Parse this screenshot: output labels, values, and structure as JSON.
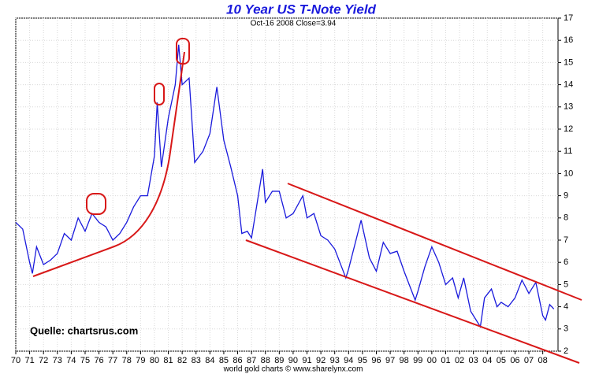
{
  "chart_data": {
    "type": "line",
    "title": "10 Year US T-Note Yield",
    "subtitle": "Oct-16 2008  Close=3.94",
    "annotation": "Quelle: chartsrus.com",
    "footer": "world gold charts © www.sharelynx.com",
    "x": [
      1970.0,
      1970.5,
      1971.0,
      1971.2,
      1971.5,
      1972.0,
      1972.5,
      1973.0,
      1973.5,
      1974.0,
      1974.5,
      1975.0,
      1975.5,
      1976.0,
      1976.5,
      1977.0,
      1977.5,
      1978.0,
      1978.5,
      1979.0,
      1979.5,
      1980.0,
      1980.2,
      1980.5,
      1981.0,
      1981.5,
      1981.75,
      1982.0,
      1982.5,
      1982.9,
      1983.5,
      1984.0,
      1984.5,
      1985.0,
      1985.5,
      1986.0,
      1986.3,
      1986.7,
      1987.0,
      1987.8,
      1988.0,
      1988.5,
      1989.0,
      1989.5,
      1990.0,
      1990.7,
      1991.0,
      1991.5,
      1992.0,
      1992.5,
      1993.0,
      1993.8,
      1994.0,
      1994.9,
      1995.5,
      1996.0,
      1996.5,
      1997.0,
      1997.5,
      1998.0,
      1998.8,
      1999.0,
      1999.5,
      2000.0,
      2000.5,
      2001.0,
      2001.5,
      2001.9,
      2002.3,
      2002.8,
      2003.5,
      2003.8,
      2004.3,
      2004.7,
      2005.0,
      2005.5,
      2006.0,
      2006.5,
      2007.0,
      2007.5,
      2008.0,
      2008.2,
      2008.5,
      2008.8
    ],
    "series": [
      {
        "name": "10 Year US T-Note Yield",
        "color": "#1a1adc",
        "values": [
          7.8,
          7.5,
          6.0,
          5.5,
          6.7,
          5.9,
          6.1,
          6.4,
          7.3,
          7.0,
          8.0,
          7.4,
          8.2,
          7.8,
          7.6,
          7.0,
          7.3,
          7.8,
          8.5,
          9.0,
          9.0,
          10.8,
          13.2,
          10.3,
          12.5,
          14.0,
          15.8,
          14.0,
          14.3,
          10.5,
          11.0,
          11.8,
          13.9,
          11.5,
          10.3,
          9.0,
          7.3,
          7.4,
          7.1,
          10.2,
          8.7,
          9.2,
          9.2,
          8.0,
          8.2,
          9.0,
          8.0,
          8.2,
          7.2,
          7.0,
          6.6,
          5.3,
          5.7,
          7.9,
          6.2,
          5.6,
          6.9,
          6.4,
          6.5,
          5.6,
          4.3,
          4.7,
          5.8,
          6.7,
          6.0,
          5.0,
          5.3,
          4.4,
          5.3,
          3.8,
          3.1,
          4.4,
          4.8,
          4.0,
          4.2,
          4.0,
          4.4,
          5.2,
          4.6,
          5.1,
          3.6,
          3.4,
          4.1,
          3.9
        ]
      }
    ],
    "xlim": [
      1970,
      2009.1
    ],
    "xticks": [
      {
        "value": 1970,
        "label": "70"
      },
      {
        "value": 1971,
        "label": "71"
      },
      {
        "value": 1972,
        "label": "72"
      },
      {
        "value": 1973,
        "label": "73"
      },
      {
        "value": 1974,
        "label": "74"
      },
      {
        "value": 1975,
        "label": "75"
      },
      {
        "value": 1976,
        "label": "76"
      },
      {
        "value": 1977,
        "label": "77"
      },
      {
        "value": 1978,
        "label": "78"
      },
      {
        "value": 1979,
        "label": "79"
      },
      {
        "value": 1980,
        "label": "80"
      },
      {
        "value": 1981,
        "label": "81"
      },
      {
        "value": 1982,
        "label": "82"
      },
      {
        "value": 1983,
        "label": "83"
      },
      {
        "value": 1984,
        "label": "84"
      },
      {
        "value": 1985,
        "label": "85"
      },
      {
        "value": 1986,
        "label": "86"
      },
      {
        "value": 1987,
        "label": "87"
      },
      {
        "value": 1988,
        "label": "88"
      },
      {
        "value": 1989,
        "label": "89"
      },
      {
        "value": 1990,
        "label": "90"
      },
      {
        "value": 1991,
        "label": "91"
      },
      {
        "value": 1992,
        "label": "92"
      },
      {
        "value": 1993,
        "label": "93"
      },
      {
        "value": 1994,
        "label": "94"
      },
      {
        "value": 1995,
        "label": "95"
      },
      {
        "value": 1996,
        "label": "96"
      },
      {
        "value": 1997,
        "label": "97"
      },
      {
        "value": 1998,
        "label": "98"
      },
      {
        "value": 1999,
        "label": "99"
      },
      {
        "value": 2000,
        "label": "00"
      },
      {
        "value": 2001,
        "label": "01"
      },
      {
        "value": 2002,
        "label": "02"
      },
      {
        "value": 2003,
        "label": "03"
      },
      {
        "value": 2004,
        "label": "04"
      },
      {
        "value": 2005,
        "label": "05"
      },
      {
        "value": 2006,
        "label": "06"
      },
      {
        "value": 2007,
        "label": "07"
      },
      {
        "value": 2008,
        "label": "08"
      }
    ],
    "ylim": [
      2,
      17
    ],
    "yticks": [
      2,
      3,
      4,
      5,
      6,
      7,
      8,
      9,
      10,
      11,
      12,
      13,
      14,
      15,
      16,
      17
    ],
    "grid": true
  }
}
